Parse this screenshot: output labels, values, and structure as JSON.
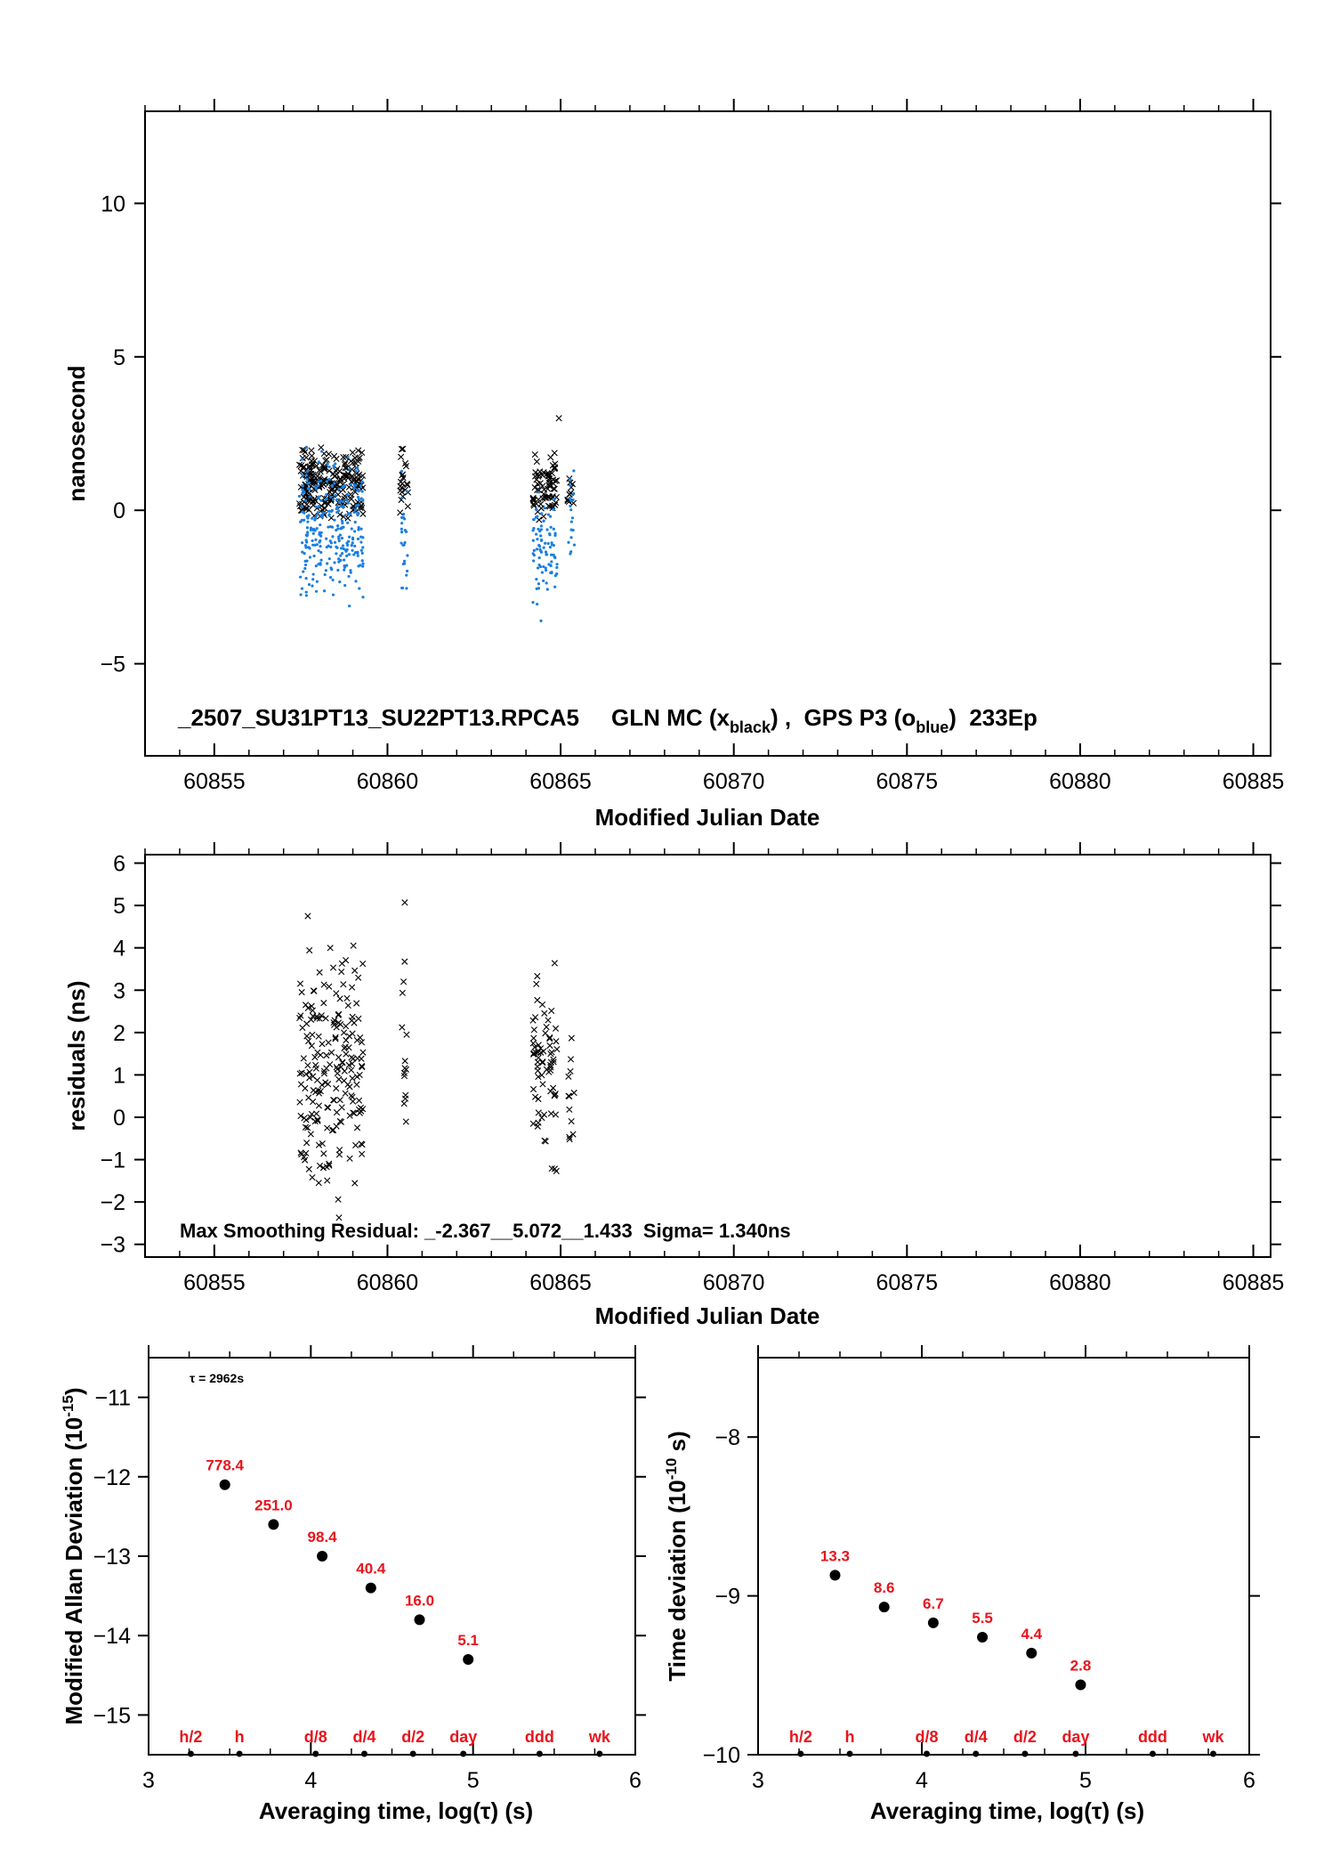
{
  "chart_data": [
    {
      "id": "timeseries",
      "type": "scatter",
      "title": "_2507_SU31PT13_SU22PT13.RPCA5     GLN MC (x",
      "title_black_sub": "black",
      "title_mid": ") ,  GPS P3 (o",
      "title_blue_sub": "blue",
      "title_end": ")  233Ep",
      "xlabel": "Modified Julian Date",
      "ylabel": "nanosecond",
      "xlim": [
        60853.0,
        60885.5
      ],
      "ylim": [
        -8,
        13
      ],
      "xticks": [
        60855,
        60860,
        60865,
        60870,
        60875,
        60880,
        60885
      ],
      "yticks": [
        -5,
        0,
        5,
        10
      ],
      "colors": {
        "black": "#000000",
        "blue": "#1a7fe0"
      },
      "series": [
        {
          "marker": "x",
          "color": "#000000",
          "clusters": [
            {
              "x": [
                60857.45,
                60859.3
              ],
              "y": [
                -0.6,
                2.4
              ],
              "n": 230
            },
            {
              "x": [
                60860.35,
                60860.6
              ],
              "y": [
                -0.4,
                2.3
              ],
              "n": 22
            },
            {
              "x": [
                60864.2,
                60864.9
              ],
              "y": [
                -0.5,
                2.0
              ],
              "n": 70
            },
            {
              "x": [
                60865.2,
                60865.4
              ],
              "y": [
                -0.2,
                1.4
              ],
              "n": 12
            }
          ],
          "extra": [
            [
              60864.95,
              3.0
            ]
          ]
        },
        {
          "marker": "dot",
          "color": "#1a7fe0",
          "clusters": [
            {
              "x": [
                60857.45,
                60859.3
              ],
              "y": [
                -3.6,
                2.4
              ],
              "n": 280
            },
            {
              "x": [
                60860.4,
                60860.6
              ],
              "y": [
                -3.9,
                1.6
              ],
              "n": 25
            },
            {
              "x": [
                60864.2,
                60864.9
              ],
              "y": [
                -3.7,
                1.6
              ],
              "n": 90
            },
            {
              "x": [
                60865.2,
                60865.4
              ],
              "y": [
                -2.3,
                2.1
              ],
              "n": 18
            }
          ]
        }
      ]
    },
    {
      "id": "residuals",
      "type": "scatter",
      "xlabel": "Modified Julian Date",
      "ylabel": "residuals (ns)",
      "xlim": [
        60853.0,
        60885.5
      ],
      "ylim": [
        -3.3,
        6.2
      ],
      "xticks": [
        60855,
        60860,
        60865,
        60870,
        60875,
        60880,
        60885
      ],
      "yticks": [
        -3,
        -2,
        -1,
        0,
        1,
        2,
        3,
        4,
        5,
        6
      ],
      "annotation": "Max Smoothing Residual: _-2.367__5.072__1.433  Sigma= 1.340ns",
      "series": [
        {
          "marker": "x",
          "color": "#000000",
          "clusters": [
            {
              "x": [
                60857.45,
                60859.3
              ],
              "y": [
                -2.3,
                4.7
              ],
              "n": 200
            },
            {
              "x": [
                60860.4,
                60860.6
              ],
              "y": [
                -1.0,
                5.1
              ],
              "n": 14
            },
            {
              "x": [
                60864.2,
                60864.9
              ],
              "y": [
                -1.9,
                4.4
              ],
              "n": 70
            },
            {
              "x": [
                60865.2,
                60865.4
              ],
              "y": [
                -1.6,
                2.6
              ],
              "n": 12
            }
          ],
          "extra": [
            [
              60860.5,
              5.07
            ],
            [
              60858.6,
              -2.37
            ],
            [
              60857.7,
              4.75
            ]
          ]
        }
      ]
    },
    {
      "id": "mdev",
      "type": "scatter",
      "xlabel": "Averaging time, log(τ) (s)",
      "ylabel": "Modified Allan Deviation (10",
      "ylabel_sup": "-15",
      "ylabel_end": ")",
      "xlim": [
        3,
        6
      ],
      "ylim": [
        -15.5,
        -10.5
      ],
      "xticks": [
        3,
        4,
        5,
        6
      ],
      "yticks": [
        -15,
        -14,
        -13,
        -12,
        -11
      ],
      "tau_label": "τ = 2962s",
      "x": [
        3.47,
        3.77,
        4.07,
        4.37,
        4.67,
        4.97
      ],
      "y": [
        -12.1,
        -12.6,
        -13.0,
        -13.4,
        -13.8,
        -14.3
      ],
      "labels": [
        "778.4",
        "251.0",
        "98.4",
        "40.4",
        "16.0",
        "5.1"
      ],
      "bottom_marks": [
        {
          "x": 3.26,
          "label": "h/2"
        },
        {
          "x": 3.56,
          "label": "h"
        },
        {
          "x": 4.03,
          "label": "d/8"
        },
        {
          "x": 4.33,
          "label": "d/4"
        },
        {
          "x": 4.63,
          "label": "d/2"
        },
        {
          "x": 4.94,
          "label": "day"
        },
        {
          "x": 5.41,
          "label": "ddd"
        },
        {
          "x": 5.78,
          "label": "wk"
        }
      ]
    },
    {
      "id": "tdev",
      "type": "scatter",
      "xlabel": "Averaging time, log(τ) (s)",
      "ylabel": "Time deviation (10",
      "ylabel_sup": "-10",
      "ylabel_end": " s)",
      "xlim": [
        3,
        6
      ],
      "ylim": [
        -10,
        -7.5
      ],
      "xticks": [
        3,
        4,
        5,
        6
      ],
      "yticks": [
        -10,
        -9,
        -8
      ],
      "x": [
        3.47,
        3.77,
        4.07,
        4.37,
        4.67,
        4.97
      ],
      "y": [
        -8.87,
        -9.07,
        -9.17,
        -9.26,
        -9.36,
        -9.56
      ],
      "labels": [
        "13.3",
        "8.6",
        "6.7",
        "5.5",
        "4.4",
        "2.8"
      ],
      "bottom_marks": [
        {
          "x": 3.26,
          "label": "h/2"
        },
        {
          "x": 3.56,
          "label": "h"
        },
        {
          "x": 4.03,
          "label": "d/8"
        },
        {
          "x": 4.33,
          "label": "d/4"
        },
        {
          "x": 4.63,
          "label": "d/2"
        },
        {
          "x": 4.94,
          "label": "day"
        },
        {
          "x": 5.41,
          "label": "ddd"
        },
        {
          "x": 5.78,
          "label": "wk"
        }
      ]
    }
  ]
}
